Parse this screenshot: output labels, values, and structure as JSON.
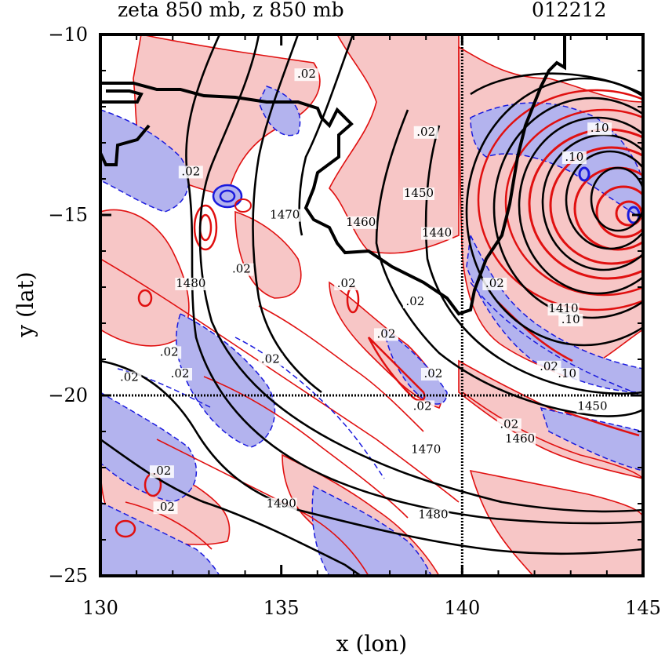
{
  "chart_data": {
    "type": "contour",
    "title": "zeta 850 mb, z 850 mb",
    "time_label": "012212",
    "xlabel": "x (lon)",
    "ylabel": "y (lat)",
    "xlim": [
      130,
      145
    ],
    "ylim": [
      -25,
      -10
    ],
    "x_ticks": [
      130,
      135,
      140,
      145
    ],
    "x_tick_labels": [
      "130",
      "135",
      "140",
      "145"
    ],
    "y_ticks": [
      -10,
      -15,
      -20,
      -25
    ],
    "y_tick_labels": [
      "−10",
      "−15",
      "−20",
      "−25"
    ],
    "reference_lines": {
      "lon": 140,
      "lat": -20
    },
    "colors": {
      "positive_fill": "#f7c6c6",
      "negative_fill": "#b3b3ee",
      "positive_line": "#e01010",
      "negative_line": "#1a1add",
      "height_line": "#000000"
    },
    "height_contours": [
      {
        "label": "1440",
        "lon": 139.3,
        "lat": -15.6
      },
      {
        "label": "1450",
        "lon": 138.8,
        "lat": -14.5
      },
      {
        "label": "1460",
        "lon": 137.2,
        "lat": -15.3
      },
      {
        "label": "1470",
        "lon": 135.1,
        "lat": -15.1
      },
      {
        "label": "1480",
        "lon": 132.5,
        "lat": -17.0
      },
      {
        "label": "1470",
        "lon": 139.0,
        "lat": -21.6
      },
      {
        "label": "1460",
        "lon": 141.6,
        "lat": -21.3
      },
      {
        "label": "1480",
        "lon": 139.2,
        "lat": -23.4
      },
      {
        "label": "1490",
        "lon": 135.0,
        "lat": -23.1
      },
      {
        "label": "1450",
        "lon": 143.6,
        "lat": -20.4
      },
      {
        "label": "1410",
        "lon": 142.8,
        "lat": -17.7
      }
    ],
    "vorticity_labels": [
      {
        "label": ".02",
        "lon": 135.7,
        "lat": -11.2
      },
      {
        "label": ".02",
        "lon": 139.0,
        "lat": -12.8
      },
      {
        "label": ".02",
        "lon": 132.5,
        "lat": -13.9
      },
      {
        "label": ".02",
        "lon": 133.9,
        "lat": -16.6
      },
      {
        "label": ".02",
        "lon": 136.8,
        "lat": -17.0
      },
      {
        "label": ".02",
        "lon": 138.7,
        "lat": -17.5
      },
      {
        "label": ".02",
        "lon": 137.9,
        "lat": -18.4
      },
      {
        "label": ".02",
        "lon": 131.9,
        "lat": -18.9
      },
      {
        "label": ".02",
        "lon": 132.2,
        "lat": -19.5
      },
      {
        "label": ".02",
        "lon": 134.7,
        "lat": -19.1
      },
      {
        "label": ".02",
        "lon": 130.8,
        "lat": -19.6
      },
      {
        "label": ".02",
        "lon": 139.2,
        "lat": -19.5
      },
      {
        "label": ".02",
        "lon": 138.9,
        "lat": -20.4
      },
      {
        "label": ".02",
        "lon": 141.3,
        "lat": -20.9
      },
      {
        "label": ".02",
        "lon": 142.4,
        "lat": -19.3
      },
      {
        "label": ".02",
        "lon": 131.7,
        "lat": -22.2
      },
      {
        "label": ".02",
        "lon": 131.8,
        "lat": -23.2
      },
      {
        "label": ".02",
        "lon": 140.9,
        "lat": -17.0
      },
      {
        "label": ".10",
        "lon": 143.8,
        "lat": -12.7
      },
      {
        "label": ".10",
        "lon": 143.1,
        "lat": -13.5
      },
      {
        "label": ".10",
        "lon": 143.0,
        "lat": -18.0
      },
      {
        "label": ".10",
        "lon": 142.9,
        "lat": -19.5
      }
    ]
  }
}
